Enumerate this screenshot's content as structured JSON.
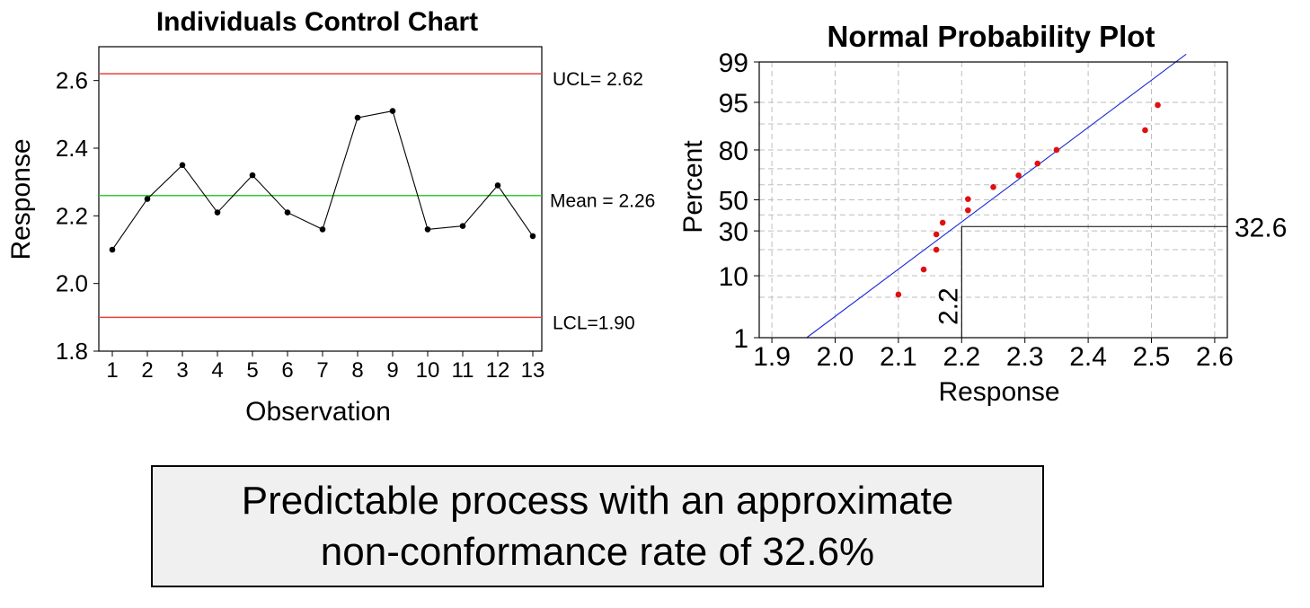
{
  "chart_data": [
    {
      "type": "line",
      "title": "Individuals Control Chart",
      "xlabel": "Observation",
      "ylabel": "Response",
      "x": [
        1,
        2,
        3,
        4,
        5,
        6,
        7,
        8,
        9,
        10,
        11,
        12,
        13
      ],
      "values": [
        2.1,
        2.25,
        2.35,
        2.21,
        2.32,
        2.21,
        2.16,
        2.49,
        2.51,
        2.16,
        2.17,
        2.29,
        2.14
      ],
      "ylim": [
        1.8,
        2.7
      ],
      "yticks": [
        "1.8",
        "2.0",
        "2.2",
        "2.4",
        "2.6"
      ],
      "yticks_values": [
        1.8,
        2.0,
        2.2,
        2.4,
        2.6
      ],
      "xticks": [
        "1",
        "2",
        "3",
        "4",
        "5",
        "6",
        "7",
        "8",
        "9",
        "10",
        "11",
        "12",
        "13"
      ],
      "control_limits": [
        {
          "name": "UCL",
          "value": 2.62,
          "label": "UCL= 2.62",
          "color": "#e8423a"
        },
        {
          "name": "Mean",
          "value": 2.26,
          "label": "Mean = 2.26",
          "color": "#33cc33"
        },
        {
          "name": "LCL",
          "value": 1.9,
          "label": "LCL=1.90",
          "color": "#e8423a"
        }
      ]
    },
    {
      "type": "scatter",
      "title": "Normal Probability Plot",
      "xlabel": "Response",
      "ylabel": "Percent",
      "points": [
        {
          "x": 2.1,
          "p": 5.5
        },
        {
          "x": 2.14,
          "p": 12.0
        },
        {
          "x": 2.16,
          "p": 20.0
        },
        {
          "x": 2.16,
          "p": 28.0
        },
        {
          "x": 2.17,
          "p": 35.0
        },
        {
          "x": 2.21,
          "p": 43.0
        },
        {
          "x": 2.21,
          "p": 50.5
        },
        {
          "x": 2.25,
          "p": 58.5
        },
        {
          "x": 2.29,
          "p": 66.0
        },
        {
          "x": 2.32,
          "p": 73.0
        },
        {
          "x": 2.35,
          "p": 80.0
        },
        {
          "x": 2.49,
          "p": 88.0
        },
        {
          "x": 2.51,
          "p": 94.5
        }
      ],
      "fit_line": {
        "x1": 1.955,
        "p1": 1.0,
        "x2": 2.555,
        "p2": 99.3,
        "color": "#1a2bd6"
      },
      "xlim": [
        1.88,
        2.62
      ],
      "xticks": [
        "1.9",
        "2.0",
        "2.1",
        "2.2",
        "2.3",
        "2.4",
        "2.5",
        "2.6"
      ],
      "xticks_values": [
        1.9,
        2.0,
        2.1,
        2.2,
        2.3,
        2.4,
        2.5,
        2.6
      ],
      "yticks": [
        "1",
        "10",
        "30",
        "50",
        "80",
        "95",
        "99"
      ],
      "yticks_values": [
        1,
        10,
        30,
        50,
        80,
        95,
        99
      ],
      "grid_percents": [
        1,
        5,
        10,
        20,
        30,
        40,
        50,
        60,
        70,
        80,
        90,
        95,
        99
      ],
      "point_color": "#e01010",
      "annotation": {
        "x": 2.2,
        "p": 32.6,
        "x_label": "2.2",
        "p_label": "32.6"
      }
    }
  ],
  "conclusion": {
    "line1": "Predictable process with an approximate",
    "line2": "non-conformance rate of 32.6%"
  }
}
